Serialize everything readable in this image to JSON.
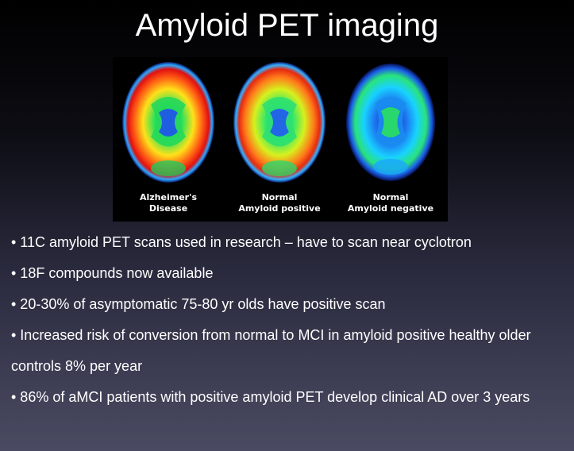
{
  "slide": {
    "title": "Amyloid PET imaging"
  },
  "figure": {
    "scans": [
      {
        "line1": "Alzheimer's",
        "line2": "Disease"
      },
      {
        "line1": "Normal",
        "line2": "Amyloid positive"
      },
      {
        "line1": "Normal",
        "line2": "Amyloid negative"
      }
    ]
  },
  "bullets": [
    "• 11C amyloid PET scans used in research – have to scan near cyclotron",
    "• 18F compounds now available",
    "• 20-30% of asymptomatic 75-80 yr olds have positive scan",
    "• Increased risk of conversion from normal to MCI in amyloid positive healthy older controls 8% per year",
    "• 86% of aMCI patients with positive amyloid PET develop clinical AD over 3 years"
  ]
}
